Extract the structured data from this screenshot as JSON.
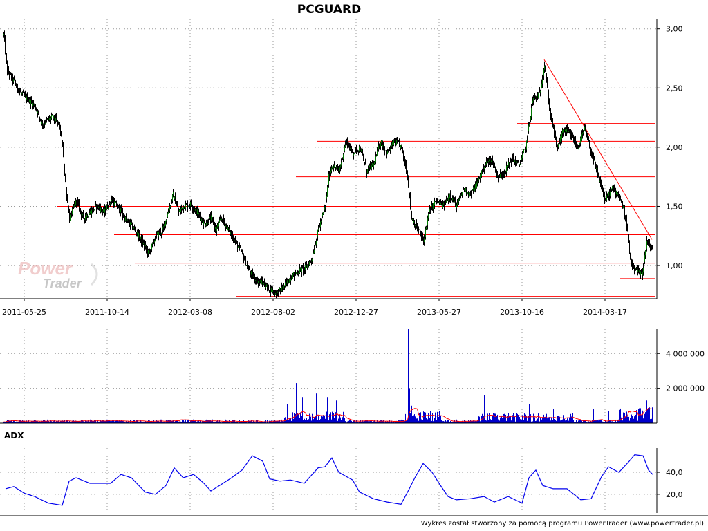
{
  "chart_data": [
    {
      "type": "candlestick",
      "title": "PCGUARD",
      "x_tick_labels": [
        "2011-05-25",
        "2011-10-14",
        "2012-03-08",
        "2012-08-02",
        "2012-12-27",
        "2013-05-27",
        "2013-10-16",
        "2014-03-17"
      ],
      "y_tick_labels": [
        "3,00",
        "2,50",
        "2,00",
        "1,50",
        "1,00"
      ],
      "y_ticks": [
        3.0,
        2.5,
        2.0,
        1.5,
        1.0
      ],
      "ylim": [
        0.72,
        3.08
      ],
      "grid": true,
      "price_path": [
        [
          0,
          2.75
        ],
        [
          5,
          2.95
        ],
        [
          10,
          2.65
        ],
        [
          20,
          2.55
        ],
        [
          30,
          2.45
        ],
        [
          40,
          2.4
        ],
        [
          50,
          2.35
        ],
        [
          60,
          2.2
        ],
        [
          75,
          2.25
        ],
        [
          85,
          2.2
        ],
        [
          90,
          2.0
        ],
        [
          95,
          1.65
        ],
        [
          100,
          1.4
        ],
        [
          110,
          1.55
        ],
        [
          120,
          1.4
        ],
        [
          130,
          1.45
        ],
        [
          140,
          1.5
        ],
        [
          150,
          1.45
        ],
        [
          160,
          1.55
        ],
        [
          170,
          1.5
        ],
        [
          180,
          1.4
        ],
        [
          195,
          1.3
        ],
        [
          205,
          1.2
        ],
        [
          215,
          1.1
        ],
        [
          225,
          1.25
        ],
        [
          235,
          1.3
        ],
        [
          245,
          1.5
        ],
        [
          250,
          1.6
        ],
        [
          258,
          1.45
        ],
        [
          265,
          1.5
        ],
        [
          275,
          1.52
        ],
        [
          285,
          1.45
        ],
        [
          295,
          1.35
        ],
        [
          305,
          1.4
        ],
        [
          312,
          1.3
        ],
        [
          320,
          1.4
        ],
        [
          330,
          1.3
        ],
        [
          340,
          1.2
        ],
        [
          350,
          1.1
        ],
        [
          360,
          0.95
        ],
        [
          370,
          0.88
        ],
        [
          380,
          0.85
        ],
        [
          390,
          0.8
        ],
        [
          400,
          0.76
        ],
        [
          410,
          0.82
        ],
        [
          420,
          0.9
        ],
        [
          430,
          0.95
        ],
        [
          440,
          0.97
        ],
        [
          450,
          1.05
        ],
        [
          460,
          1.3
        ],
        [
          470,
          1.5
        ],
        [
          475,
          1.75
        ],
        [
          480,
          1.85
        ],
        [
          490,
          1.8
        ],
        [
          500,
          2.05
        ],
        [
          510,
          1.95
        ],
        [
          520,
          2.0
        ],
        [
          530,
          1.8
        ],
        [
          540,
          1.85
        ],
        [
          550,
          2.05
        ],
        [
          560,
          1.95
        ],
        [
          570,
          2.05
        ],
        [
          580,
          2.0
        ],
        [
          588,
          1.8
        ],
        [
          595,
          1.4
        ],
        [
          605,
          1.3
        ],
        [
          612,
          1.2
        ],
        [
          620,
          1.45
        ],
        [
          630,
          1.55
        ],
        [
          640,
          1.5
        ],
        [
          650,
          1.6
        ],
        [
          660,
          1.5
        ],
        [
          670,
          1.65
        ],
        [
          680,
          1.6
        ],
        [
          690,
          1.7
        ],
        [
          700,
          1.85
        ],
        [
          710,
          1.9
        ],
        [
          720,
          1.75
        ],
        [
          730,
          1.8
        ],
        [
          740,
          1.9
        ],
        [
          750,
          1.85
        ],
        [
          760,
          2.0
        ],
        [
          770,
          2.4
        ],
        [
          780,
          2.45
        ],
        [
          787,
          2.7
        ],
        [
          795,
          2.3
        ],
        [
          805,
          2.0
        ],
        [
          815,
          2.15
        ],
        [
          825,
          2.1
        ],
        [
          835,
          2.0
        ],
        [
          845,
          2.15
        ],
        [
          855,
          1.95
        ],
        [
          865,
          1.75
        ],
        [
          875,
          1.55
        ],
        [
          885,
          1.65
        ],
        [
          895,
          1.6
        ],
        [
          905,
          1.4
        ],
        [
          912,
          1.0
        ],
        [
          920,
          0.95
        ],
        [
          928,
          0.92
        ],
        [
          935,
          1.2
        ],
        [
          942,
          1.15
        ]
      ]
    },
    {
      "type": "bar",
      "title": "",
      "y_tick_labels": [
        "4 000 000",
        "2 000 000"
      ],
      "y_ticks": [
        4000000,
        2000000
      ],
      "ylim": [
        0,
        5400000
      ],
      "spikes": [
        [
          590,
          5400000
        ],
        [
          592,
          2000000
        ],
        [
          428,
          2300000
        ],
        [
          437,
          1500000
        ],
        [
          457,
          1700000
        ],
        [
          473,
          1500000
        ],
        [
          486,
          1300000
        ],
        [
          908,
          3400000
        ],
        [
          912,
          1500000
        ],
        [
          931,
          2700000
        ],
        [
          935,
          1300000
        ],
        [
          260,
          1200000
        ],
        [
          415,
          1100000
        ],
        [
          595,
          1000000
        ],
        [
          700,
          1600000
        ],
        [
          765,
          1100000
        ],
        [
          776,
          900000
        ],
        [
          800,
          800000
        ],
        [
          858,
          800000
        ],
        [
          880,
          700000
        ]
      ]
    },
    {
      "type": "line",
      "title": "ADX",
      "y_tick_labels": [
        "40,0",
        "20,0"
      ],
      "y_ticks": [
        40,
        20
      ],
      "ylim": [
        3,
        62
      ],
      "series": [
        {
          "name": "ADX",
          "color": "#0000ee",
          "points": [
            [
              8,
              25
            ],
            [
              20,
              27
            ],
            [
              35,
              21
            ],
            [
              50,
              18
            ],
            [
              70,
              12
            ],
            [
              90,
              10
            ],
            [
              100,
              32
            ],
            [
              110,
              35
            ],
            [
              130,
              30
            ],
            [
              160,
              30
            ],
            [
              175,
              38
            ],
            [
              190,
              35
            ],
            [
              210,
              22
            ],
            [
              225,
              20
            ],
            [
              240,
              28
            ],
            [
              252,
              44
            ],
            [
              265,
              35
            ],
            [
              280,
              38
            ],
            [
              295,
              30
            ],
            [
              305,
              23
            ],
            [
              320,
              29
            ],
            [
              335,
              35
            ],
            [
              350,
              42
            ],
            [
              365,
              55
            ],
            [
              380,
              50
            ],
            [
              390,
              34
            ],
            [
              405,
              32
            ],
            [
              420,
              33
            ],
            [
              440,
              30
            ],
            [
              460,
              44
            ],
            [
              470,
              45
            ],
            [
              480,
              53
            ],
            [
              490,
              40
            ],
            [
              510,
              33
            ],
            [
              520,
              22
            ],
            [
              540,
              16
            ],
            [
              560,
              13
            ],
            [
              580,
              11
            ],
            [
              592,
              25
            ],
            [
              600,
              35
            ],
            [
              612,
              48
            ],
            [
              625,
              40
            ],
            [
              635,
              30
            ],
            [
              648,
              18
            ],
            [
              660,
              15
            ],
            [
              680,
              16
            ],
            [
              700,
              18
            ],
            [
              715,
              13
            ],
            [
              735,
              18
            ],
            [
              755,
              12
            ],
            [
              765,
              35
            ],
            [
              775,
              42
            ],
            [
              785,
              28
            ],
            [
              800,
              25
            ],
            [
              820,
              25
            ],
            [
              840,
              15
            ],
            [
              855,
              16
            ],
            [
              870,
              36
            ],
            [
              880,
              45
            ],
            [
              895,
              40
            ],
            [
              910,
              50
            ],
            [
              918,
              56
            ],
            [
              930,
              55
            ],
            [
              938,
              42
            ],
            [
              944,
              38
            ]
          ]
        }
      ]
    }
  ],
  "overlay": {
    "support_color": "#ff0000",
    "candle_color": "#007700"
  },
  "footer": {
    "text": "Wykres został stworzony za pomocą programu PowerTrader (www.powertrader.pl)"
  },
  "logo": {
    "line1": "Power",
    "line2": "Trader"
  }
}
